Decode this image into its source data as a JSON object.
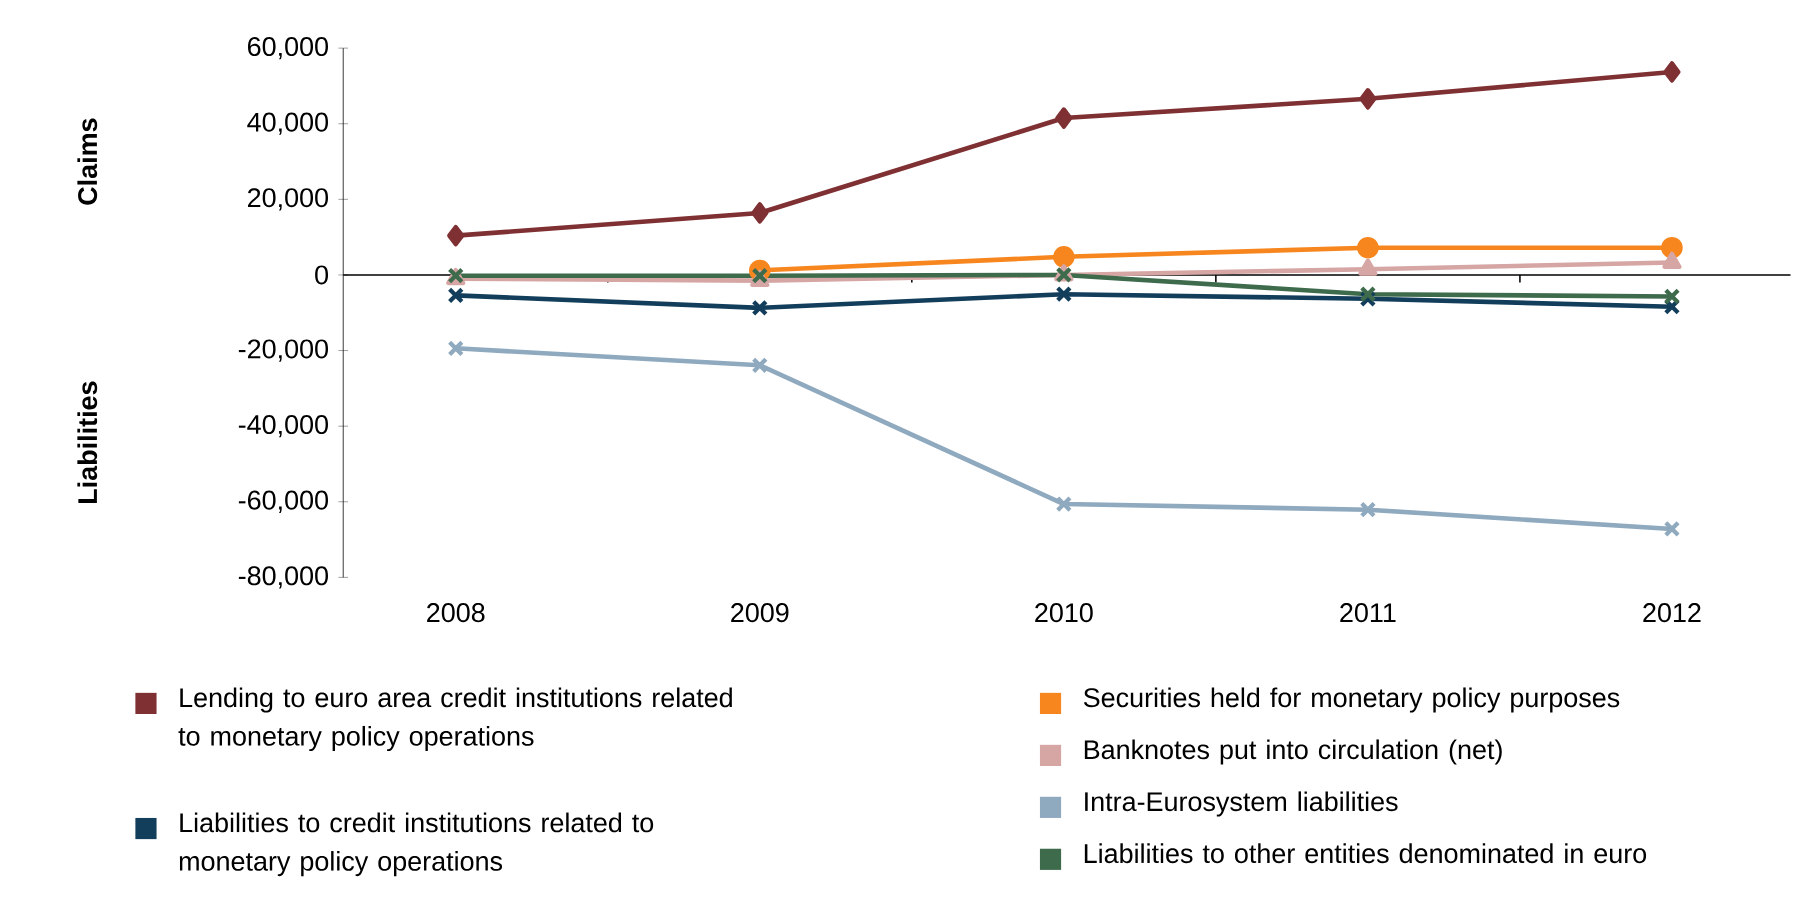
{
  "chart_data": {
    "type": "line",
    "categories": [
      "2008",
      "2009",
      "2010",
      "2011",
      "2012"
    ],
    "ylim": [
      -80000,
      60000
    ],
    "yticks": [
      {
        "value": -80000,
        "label": "-80,000"
      },
      {
        "value": -60000,
        "label": "-60,000"
      },
      {
        "value": -40000,
        "label": "-40,000"
      },
      {
        "value": -20000,
        "label": "-20,000"
      },
      0,
      {
        "value": 20000,
        "label": "20,000"
      },
      {
        "value": 40000,
        "label": "40,000"
      },
      {
        "value": 60000,
        "label": "60,000"
      }
    ],
    "annotations": [
      "Claims",
      "Liabilities"
    ],
    "ref_lines": [
      {
        "axis": "y",
        "value": 0,
        "color": "#000000"
      }
    ],
    "grid": false,
    "legend": "bottom",
    "line_style": "solid",
    "series": [
      {
        "name": "Lending to euro area credit institutions related to monetary policy operations",
        "color": "#7f3033",
        "marker": "diamond",
        "values": [
          10400,
          16400,
          41500,
          46600,
          53700
        ]
      },
      {
        "name": "Liabilities to credit institutions related to monetary policy operations",
        "color": "#123e5c",
        "marker": "cross",
        "values": [
          -5400,
          -8700,
          -5100,
          -6300,
          -8400
        ]
      },
      {
        "name": "Securities held for monetary policy purposes",
        "color": "#f7861f",
        "marker": "circle",
        "values": [
          null,
          1200,
          4800,
          7200,
          7200
        ]
      },
      {
        "name": "Banknotes put into circulation (net)",
        "color": "#d6a6a4",
        "marker": "triangle",
        "values": [
          -1000,
          -1500,
          0,
          1500,
          3300
        ]
      },
      {
        "name": "Intra-Eurosystem liabilities",
        "color": "#8fa9bf",
        "marker": "cross",
        "values": [
          -19400,
          -23900,
          -60600,
          -62100,
          -67200
        ]
      },
      {
        "name": "Liabilities to other entities denominated in euro",
        "color": "#3e6b4c",
        "marker": "cross",
        "values": [
          -200,
          -200,
          0,
          -5100,
          -5700
        ]
      }
    ]
  }
}
